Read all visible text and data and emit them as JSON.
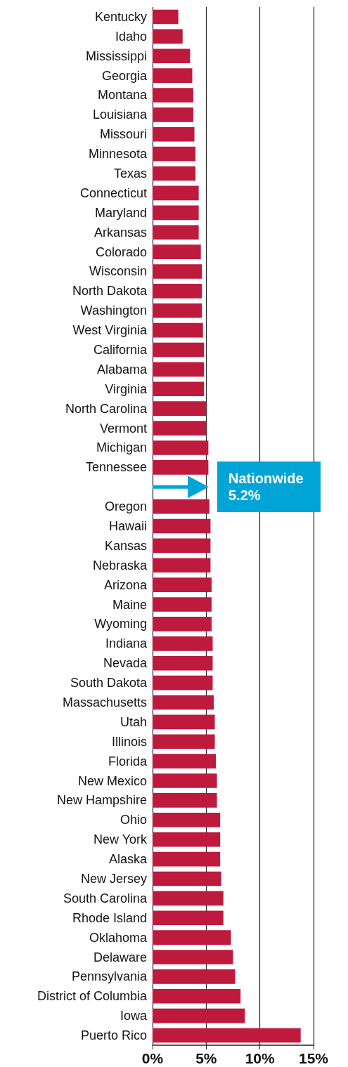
{
  "chart_data": {
    "type": "bar",
    "orientation": "horizontal",
    "categories": [
      "Kentucky",
      "Idaho",
      "Mississippi",
      "Georgia",
      "Montana",
      "Louisiana",
      "Missouri",
      "Minnesota",
      "Texas",
      "Connecticut",
      "Maryland",
      "Arkansas",
      "Colorado",
      "Wisconsin",
      "North Dakota",
      "Washington",
      "West Virginia",
      "California",
      "Alabama",
      "Virginia",
      "North Carolina",
      "Vermont",
      "Michigan",
      "Tennessee",
      null,
      "Oregon",
      "Hawaii",
      "Kansas",
      "Nebraska",
      "Arizona",
      "Maine",
      "Wyoming",
      "Indiana",
      "Nevada",
      "South Dakota",
      "Massachusetts",
      "Utah",
      "Illinois",
      "Florida",
      "New Mexico",
      "New Hampshire",
      "Ohio",
      "New York",
      "Alaska",
      "New Jersey",
      "South Carolina",
      "Rhode Island",
      "Oklahoma",
      "Delaware",
      "Pennsylvania",
      "District of Columbia",
      "Iowa",
      "Puerto Rico"
    ],
    "values": [
      2.4,
      2.8,
      3.5,
      3.7,
      3.8,
      3.8,
      3.9,
      4.0,
      4.0,
      4.3,
      4.3,
      4.3,
      4.5,
      4.6,
      4.6,
      4.6,
      4.7,
      4.8,
      4.8,
      4.8,
      5.0,
      5.0,
      5.2,
      5.2,
      null,
      5.3,
      5.4,
      5.4,
      5.4,
      5.5,
      5.5,
      5.5,
      5.6,
      5.6,
      5.6,
      5.7,
      5.8,
      5.8,
      5.9,
      6.0,
      6.0,
      6.3,
      6.3,
      6.3,
      6.4,
      6.6,
      6.6,
      7.3,
      7.5,
      7.7,
      8.2,
      8.6,
      13.8
    ],
    "color": "#be1a3e",
    "xlim": [
      0,
      15
    ],
    "xticks": [
      {
        "value": 0,
        "label": "0%"
      },
      {
        "value": 5,
        "label": "5%"
      },
      {
        "value": 10,
        "label": "10%"
      },
      {
        "value": 15,
        "label": "15%"
      }
    ],
    "grid": "x",
    "annotations": [
      "Nationwide\n5.2%"
    ]
  }
}
